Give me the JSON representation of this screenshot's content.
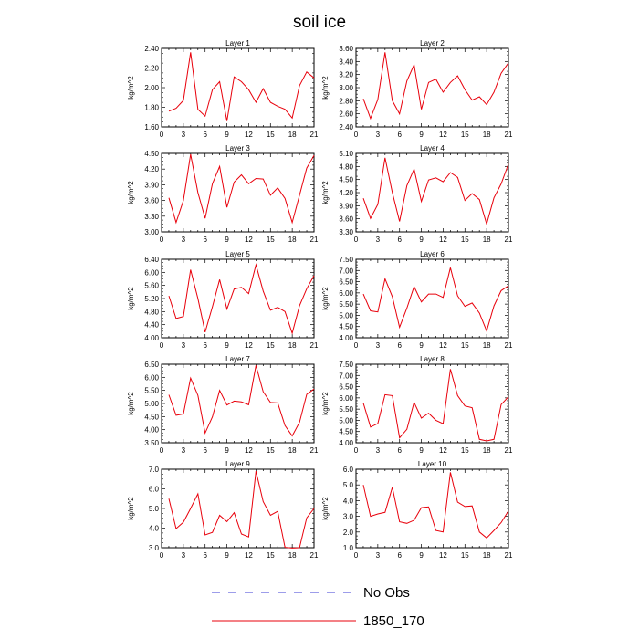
{
  "figure": {
    "title": "soil ice",
    "legend": [
      {
        "label": "No Obs",
        "color": "#3b3bd6",
        "style": "dashed"
      },
      {
        "label": "1850_170",
        "color": "#e8000b",
        "style": "solid"
      }
    ]
  },
  "chart_data": [
    {
      "type": "line",
      "title": "Layer 1",
      "ylabel": "kg/m^2",
      "xlim": [
        0,
        21
      ],
      "ylim": [
        1.6,
        2.4
      ],
      "xticks": [
        0,
        3,
        6,
        9,
        12,
        15,
        18,
        21
      ],
      "yticks": [
        "1.60",
        "1.80",
        "2.00",
        "2.20",
        "2.40"
      ],
      "x": [
        1,
        2,
        3,
        4,
        5,
        6,
        7,
        8,
        9,
        10,
        11,
        12,
        13,
        14,
        15,
        16,
        17,
        18,
        19,
        20,
        21
      ],
      "series": [
        {
          "name": "1850_170",
          "color": "#e8000b",
          "values": [
            1.76,
            1.79,
            1.87,
            2.36,
            1.78,
            1.71,
            1.98,
            2.06,
            1.66,
            2.11,
            2.06,
            1.98,
            1.85,
            1.99,
            1.85,
            1.81,
            1.78,
            1.69,
            2.02,
            2.16,
            2.1
          ]
        }
      ]
    },
    {
      "type": "line",
      "title": "Layer 2",
      "ylabel": "kg/m^2",
      "xlim": [
        0,
        21
      ],
      "ylim": [
        2.4,
        3.6
      ],
      "xticks": [
        0,
        3,
        6,
        9,
        12,
        15,
        18,
        21
      ],
      "yticks": [
        "2.40",
        "2.60",
        "2.80",
        "3.00",
        "3.20",
        "3.40",
        "3.60"
      ],
      "x": [
        1,
        2,
        3,
        4,
        5,
        6,
        7,
        8,
        9,
        10,
        11,
        12,
        13,
        14,
        15,
        16,
        17,
        18,
        19,
        20,
        21
      ],
      "series": [
        {
          "name": "1850_170",
          "color": "#e8000b",
          "values": [
            2.83,
            2.53,
            2.82,
            3.54,
            2.8,
            2.6,
            3.1,
            3.35,
            2.67,
            3.08,
            3.13,
            2.93,
            3.08,
            3.18,
            2.97,
            2.81,
            2.86,
            2.74,
            2.93,
            3.22,
            3.38
          ]
        }
      ]
    },
    {
      "type": "line",
      "title": "Layer 3",
      "ylabel": "kg/m^2",
      "xlim": [
        0,
        21
      ],
      "ylim": [
        3.0,
        4.5
      ],
      "xticks": [
        0,
        3,
        6,
        9,
        12,
        15,
        18,
        21
      ],
      "yticks": [
        "3.00",
        "3.30",
        "3.60",
        "3.90",
        "4.20",
        "4.50"
      ],
      "x": [
        1,
        2,
        3,
        4,
        5,
        6,
        7,
        8,
        9,
        10,
        11,
        12,
        13,
        14,
        15,
        16,
        17,
        18,
        19,
        20,
        21
      ],
      "series": [
        {
          "name": "1850_170",
          "color": "#e8000b",
          "values": [
            3.65,
            3.18,
            3.6,
            4.48,
            3.75,
            3.26,
            3.92,
            4.25,
            3.47,
            3.95,
            4.09,
            3.92,
            4.02,
            4.01,
            3.7,
            3.84,
            3.64,
            3.18,
            3.7,
            4.22,
            4.46
          ]
        }
      ]
    },
    {
      "type": "line",
      "title": "Layer 4",
      "ylabel": "kg/m^2",
      "xlim": [
        0,
        21
      ],
      "ylim": [
        3.3,
        5.1
      ],
      "xticks": [
        0,
        3,
        6,
        9,
        12,
        15,
        18,
        21
      ],
      "yticks": [
        "3.30",
        "3.60",
        "3.90",
        "4.20",
        "4.50",
        "4.80",
        "5.10"
      ],
      "x": [
        1,
        2,
        3,
        4,
        5,
        6,
        7,
        8,
        9,
        10,
        11,
        12,
        13,
        14,
        15,
        16,
        17,
        18,
        19,
        20,
        21
      ],
      "series": [
        {
          "name": "1850_170",
          "color": "#e8000b",
          "values": [
            4.07,
            3.61,
            3.93,
            5.0,
            4.2,
            3.54,
            4.36,
            4.74,
            4.0,
            4.49,
            4.54,
            4.45,
            4.66,
            4.55,
            4.02,
            4.18,
            4.04,
            3.48,
            4.08,
            4.4,
            4.86
          ]
        }
      ]
    },
    {
      "type": "line",
      "title": "Layer 5",
      "ylabel": "kg/m^2",
      "xlim": [
        0,
        21
      ],
      "ylim": [
        4.0,
        6.4
      ],
      "xticks": [
        0,
        3,
        6,
        9,
        12,
        15,
        18,
        21
      ],
      "yticks": [
        "4.00",
        "4.40",
        "4.80",
        "5.20",
        "5.60",
        "6.00",
        "6.40"
      ],
      "x": [
        1,
        2,
        3,
        4,
        5,
        6,
        7,
        8,
        9,
        10,
        11,
        12,
        13,
        14,
        15,
        16,
        17,
        18,
        19,
        20,
        21
      ],
      "series": [
        {
          "name": "1850_170",
          "color": "#e8000b",
          "values": [
            5.28,
            4.59,
            4.65,
            6.08,
            5.2,
            4.17,
            4.95,
            5.78,
            4.88,
            5.49,
            5.54,
            5.35,
            6.23,
            5.43,
            4.84,
            4.93,
            4.8,
            4.14,
            4.98,
            5.5,
            5.9
          ]
        }
      ]
    },
    {
      "type": "line",
      "title": "Layer 6",
      "ylabel": "kg/m^2",
      "xlim": [
        0,
        21
      ],
      "ylim": [
        4.0,
        7.5
      ],
      "xticks": [
        0,
        3,
        6,
        9,
        12,
        15,
        18,
        21
      ],
      "yticks": [
        "4.00",
        "4.50",
        "5.00",
        "5.50",
        "6.00",
        "6.50",
        "7.00",
        "7.50"
      ],
      "x": [
        1,
        2,
        3,
        4,
        5,
        6,
        7,
        8,
        9,
        10,
        11,
        12,
        13,
        14,
        15,
        16,
        17,
        18,
        19,
        20,
        21
      ],
      "series": [
        {
          "name": "1850_170",
          "color": "#e8000b",
          "values": [
            5.95,
            5.2,
            5.15,
            6.63,
            5.83,
            4.47,
            5.32,
            6.28,
            5.6,
            5.95,
            5.95,
            5.8,
            7.12,
            5.87,
            5.4,
            5.55,
            5.1,
            4.3,
            5.42,
            6.1,
            6.32
          ]
        }
      ]
    },
    {
      "type": "line",
      "title": "Layer 7",
      "ylabel": "kg/m^2",
      "xlim": [
        0,
        21
      ],
      "ylim": [
        3.5,
        6.5
      ],
      "xticks": [
        0,
        3,
        6,
        9,
        12,
        15,
        18,
        21
      ],
      "yticks": [
        "3.50",
        "4.00",
        "4.50",
        "5.00",
        "5.50",
        "6.00",
        "6.50"
      ],
      "x": [
        1,
        2,
        3,
        4,
        5,
        6,
        7,
        8,
        9,
        10,
        11,
        12,
        13,
        14,
        15,
        16,
        17,
        18,
        19,
        20,
        21
      ],
      "series": [
        {
          "name": "1850_170",
          "color": "#e8000b",
          "values": [
            5.33,
            4.55,
            4.6,
            5.97,
            5.31,
            3.87,
            4.49,
            5.5,
            4.94,
            5.09,
            5.06,
            4.95,
            6.45,
            5.45,
            5.04,
            5.02,
            4.16,
            3.76,
            4.28,
            5.35,
            5.55
          ]
        }
      ]
    },
    {
      "type": "line",
      "title": "Layer 8",
      "ylabel": "kg/m^2",
      "xlim": [
        0,
        21
      ],
      "ylim": [
        4.0,
        7.5
      ],
      "xticks": [
        0,
        3,
        6,
        9,
        12,
        15,
        18,
        21
      ],
      "yticks": [
        "4.00",
        "4.50",
        "5.00",
        "5.50",
        "6.00",
        "6.50",
        "7.00",
        "7.50"
      ],
      "x": [
        1,
        2,
        3,
        4,
        5,
        6,
        7,
        8,
        9,
        10,
        11,
        12,
        13,
        14,
        15,
        16,
        17,
        18,
        19,
        20,
        21
      ],
      "series": [
        {
          "name": "1850_170",
          "color": "#e8000b",
          "values": [
            5.77,
            4.7,
            4.86,
            6.14,
            6.1,
            4.22,
            4.6,
            5.8,
            5.1,
            5.32,
            5.0,
            4.85,
            7.28,
            6.1,
            5.64,
            5.56,
            4.15,
            4.08,
            4.15,
            5.7,
            6.05
          ]
        }
      ]
    },
    {
      "type": "line",
      "title": "Layer 9",
      "ylabel": "kg/m^2",
      "xlim": [
        0,
        21
      ],
      "ylim": [
        3.0,
        7.0
      ],
      "xticks": [
        0,
        3,
        6,
        9,
        12,
        15,
        18,
        21
      ],
      "yticks": [
        "3.0",
        "4.0",
        "5.0",
        "6.0",
        "7.0"
      ],
      "x": [
        1,
        2,
        3,
        4,
        5,
        6,
        7,
        8,
        9,
        10,
        11,
        12,
        13,
        14,
        15,
        16,
        17,
        18,
        19,
        20,
        21
      ],
      "series": [
        {
          "name": "1850_170",
          "color": "#e8000b",
          "values": [
            5.5,
            3.97,
            4.3,
            5.0,
            5.75,
            3.65,
            3.78,
            4.65,
            4.33,
            4.78,
            3.7,
            3.55,
            6.9,
            5.35,
            4.65,
            4.85,
            3.02,
            2.98,
            3.0,
            4.52,
            5.0
          ]
        }
      ]
    },
    {
      "type": "line",
      "title": "Layer 10",
      "ylabel": "kg/m^2",
      "xlim": [
        0,
        21
      ],
      "ylim": [
        1.0,
        6.0
      ],
      "xticks": [
        0,
        3,
        6,
        9,
        12,
        15,
        18,
        21
      ],
      "yticks": [
        "1.0",
        "2.0",
        "3.0",
        "4.0",
        "5.0",
        "6.0"
      ],
      "x": [
        1,
        2,
        3,
        4,
        5,
        6,
        7,
        8,
        9,
        10,
        11,
        12,
        13,
        14,
        15,
        16,
        17,
        18,
        19,
        20,
        21
      ],
      "series": [
        {
          "name": "1850_170",
          "color": "#e8000b",
          "values": [
            5.0,
            3.0,
            3.15,
            3.25,
            4.85,
            2.65,
            2.55,
            2.75,
            3.55,
            3.6,
            2.1,
            2.0,
            5.8,
            3.9,
            3.62,
            3.66,
            2.0,
            1.62,
            2.1,
            2.6,
            3.35
          ]
        }
      ]
    }
  ]
}
